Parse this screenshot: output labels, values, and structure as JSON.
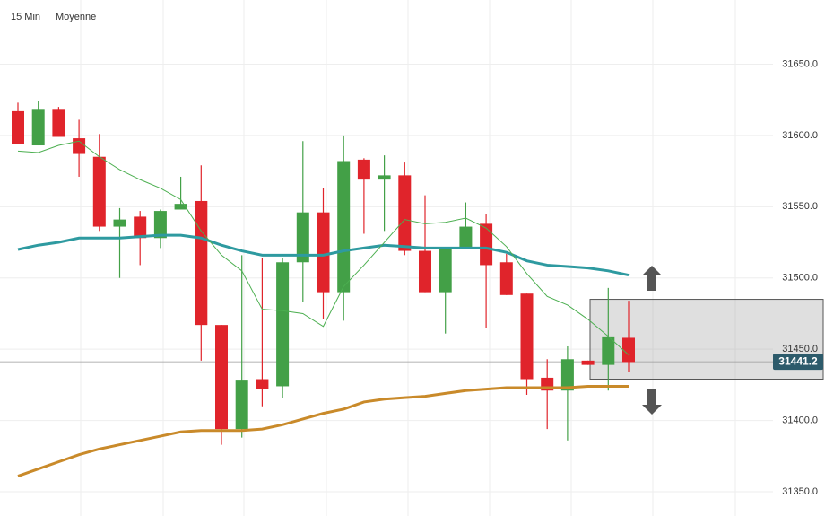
{
  "header": {
    "interval": "15 Min",
    "indicator": "Moyenne"
  },
  "chart_data": {
    "type": "candlestick",
    "categories": [
      null,
      null,
      null,
      null,
      null,
      null,
      null,
      null,
      null,
      null,
      null,
      null,
      null,
      null,
      null,
      null,
      null,
      null,
      null,
      null,
      null,
      null,
      null,
      null,
      null,
      null,
      null,
      null,
      null,
      null,
      null
    ],
    "open": [
      31617,
      31593,
      31618,
      31598,
      31585,
      31536,
      31543,
      31528,
      31548,
      31554,
      31467,
      31394,
      31429,
      31424,
      31511,
      31546,
      31490,
      31583,
      31569,
      31572,
      31519,
      31490,
      31521,
      31538,
      31511,
      31489,
      31430,
      31421,
      31442,
      31439,
      31458
    ],
    "high": [
      31623,
      31624,
      31620,
      31611,
      31601,
      31549,
      31547,
      31548,
      31571,
      31579,
      31467,
      31516,
      31514,
      31514,
      31596,
      31563,
      31600,
      31584,
      31586,
      31581,
      31558,
      31521,
      31553,
      31545,
      31517,
      31489,
      31443,
      31452,
      31442,
      31493,
      31484
    ],
    "low": [
      31594,
      31593,
      31599,
      31571,
      31533,
      31500,
      31509,
      31521,
      31548,
      31442,
      31383,
      31388,
      31410,
      31416,
      31483,
      31471,
      31470,
      31531,
      31533,
      31516,
      31490,
      31461,
      31521,
      31465,
      31488,
      31418,
      31394,
      31386,
      31439,
      31421,
      31434
    ],
    "close": [
      31594,
      31618,
      31599,
      31587,
      31536,
      31541,
      31528,
      31547,
      31552,
      31467,
      31394,
      31428,
      31422,
      31511,
      31546,
      31490,
      31582,
      31569,
      31572,
      31519,
      31490,
      31521,
      31536,
      31509,
      31488,
      31429,
      31421,
      31443,
      31439,
      31459,
      31441
    ],
    "up_color": "#43a047",
    "down_color": "#e0242b",
    "lines": [
      {
        "color": "#2e9aa0",
        "width": 3,
        "values": [
          31520,
          31523,
          31525,
          31528,
          31528,
          31528,
          31529,
          31530,
          31530,
          31528,
          31523,
          31519,
          31516,
          31516,
          31516,
          31516,
          31519,
          31521,
          31523,
          31522,
          31521,
          31521,
          31521,
          31521,
          31518,
          31512,
          31509,
          31508,
          31507,
          31505,
          31502
        ]
      },
      {
        "color": "#c98a2a",
        "width": 3,
        "values": [
          31361,
          31366,
          31371,
          31376,
          31380,
          31383,
          31386,
          31389,
          31392,
          31393,
          31393,
          31393,
          31394,
          31397,
          31401,
          31405,
          31408,
          31413,
          31415,
          31416,
          31417,
          31419,
          31421,
          31422,
          31423,
          31423,
          31423,
          31423,
          31424,
          31424,
          31424
        ]
      },
      {
        "color": "#4caf50",
        "width": 1,
        "values": [
          31589,
          31588,
          31593,
          31596,
          31585,
          31576,
          31569,
          31563,
          31555,
          31533,
          31516,
          31505,
          31478,
          31477,
          31475,
          31466,
          31494,
          31509,
          31525,
          31541,
          31538,
          31539,
          31542,
          31535,
          31522,
          31503,
          31487,
          31481,
          31471,
          31459,
          31446
        ]
      }
    ],
    "ylim": [
      31333,
      31695
    ],
    "yticks": [
      {
        "value": 31350,
        "label": "31350.0"
      },
      {
        "value": 31400,
        "label": "31400.0"
      },
      {
        "value": 31450,
        "label": "31450.0"
      },
      {
        "value": 31500,
        "label": "31500.0"
      },
      {
        "value": 31550,
        "label": "31550.0"
      },
      {
        "value": 31600,
        "label": "31600.0"
      },
      {
        "value": 31650,
        "label": "31650.0"
      }
    ],
    "grid": true,
    "last_price": 31441.2,
    "range_box": {
      "low": 31429,
      "high": 31485
    }
  }
}
